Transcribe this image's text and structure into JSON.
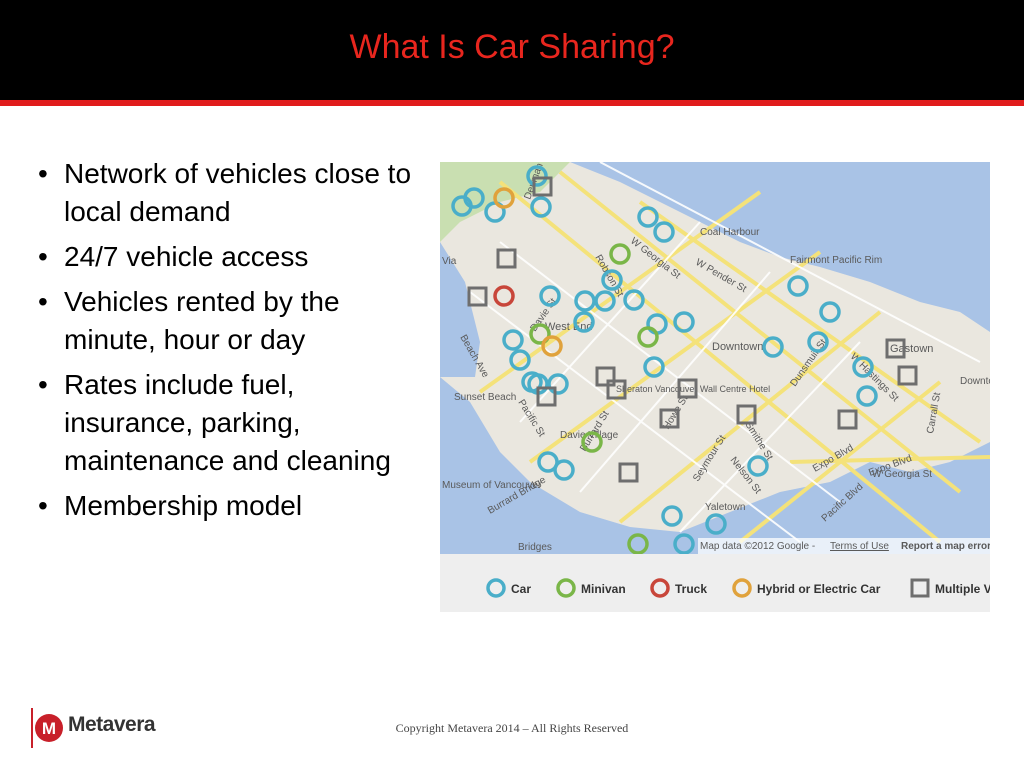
{
  "title": "What Is Car Sharing?",
  "bullets": [
    "Network of vehicles close to local demand",
    "24/7 vehicle access",
    "Vehicles rented by the minute, hour or day",
    "Rates include fuel, insurance, parking, maintenance and cleaning",
    "Membership model"
  ],
  "bullet_glyph": "•",
  "map": {
    "street_labels": [
      "Denman St",
      "W Georgia St",
      "W Pender St",
      "Robson St",
      "Davie St",
      "Beach Ave",
      "Pacific St",
      "Burrard St",
      "Howe St",
      "Seymour St",
      "Nelson St",
      "Smithe St",
      "Dunsmuir St",
      "W Hastings St",
      "Expo Blvd",
      "Pacific Blvd",
      "Burrard Bridge",
      "Carrall St",
      "Georgia Via",
      "Expo Blvd",
      "W Georgia St"
    ],
    "place_labels": [
      "Coal Harbour",
      "Fairmont Pacific Rim",
      "West End",
      "Downtown",
      "Gastown",
      "Sheraton Vancouver Wall Centre Hotel",
      "Sunset Beach",
      "Davie Village",
      "Museum of Vancouver",
      "Yaletown",
      "Bridges",
      "Downtown East",
      "Via"
    ],
    "attribution": "Map data ©2012 Google -",
    "terms_link": "Terms of Use",
    "report_link": "Report a map error"
  },
  "legend": [
    {
      "label": "Car",
      "color": "#4aaec9",
      "shape": "circle"
    },
    {
      "label": "Minivan",
      "color": "#7ab648",
      "shape": "circle"
    },
    {
      "label": "Truck",
      "color": "#c8463a",
      "shape": "circle"
    },
    {
      "label": "Hybrid or Electric Car",
      "color": "#e0a23c",
      "shape": "circle"
    },
    {
      "label": "Multiple V",
      "color": "#6e6e6e",
      "shape": "square"
    }
  ],
  "logo": {
    "name": "Metavera",
    "brand_color": "#c8202a"
  },
  "copyright": "Copyright Metavera 2014 – All Rights Reserved",
  "colors": {
    "title": "#e8261e",
    "header_bg": "#000000",
    "stripe": "#e01c1c"
  }
}
